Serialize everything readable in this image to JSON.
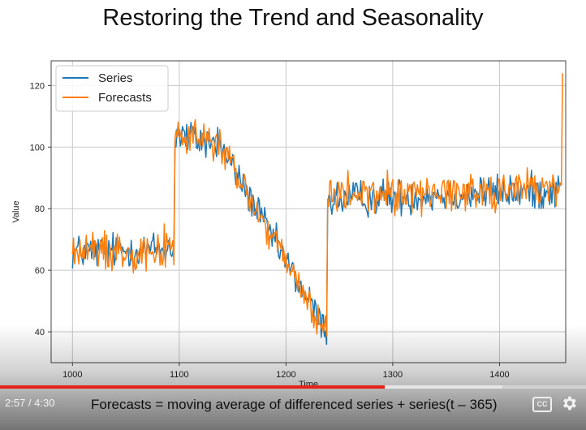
{
  "slide": {
    "title": "Restoring the Trend and Seasonality"
  },
  "player": {
    "time_display": "2:57 / 4:30",
    "caption": "Forecasts = moving average of differenced series + series(t – 365)",
    "progress_played": 0.656,
    "progress_buffered": 0.858,
    "cc_label": "CC",
    "settings_icon": "gear-icon",
    "accent_color": "#e62117"
  },
  "chart_data": {
    "type": "line",
    "xlabel": "Time",
    "ylabel": "Value",
    "xlim": [
      980,
      1462
    ],
    "ylim": [
      30,
      128
    ],
    "xticks": [
      1000,
      1100,
      1200,
      1300,
      1400
    ],
    "yticks": [
      40,
      60,
      80,
      100,
      120
    ],
    "grid": true,
    "legend_position": "upper-left",
    "series": [
      {
        "name": "Series",
        "color": "#1f77b4",
        "segments": [
          {
            "x_start": 1000,
            "x_end": 1095,
            "level_start": 66,
            "level_end": 67,
            "noise": 5.5
          },
          {
            "x_start": 1096,
            "x_end": 1138,
            "level_start": 104,
            "level_end": 101,
            "noise": 6
          },
          {
            "x_start": 1139,
            "x_end": 1238,
            "level_start": 100,
            "level_end": 40,
            "noise": 5
          },
          {
            "x_start": 1239,
            "x_end": 1457,
            "level_start": 83,
            "level_end": 86,
            "noise": 5.5
          }
        ]
      },
      {
        "name": "Forecasts",
        "color": "#ff7f0e",
        "segments": [
          {
            "x_start": 1000,
            "x_end": 1095,
            "level_start": 66,
            "level_end": 67,
            "noise": 6
          },
          {
            "x_start": 1096,
            "x_end": 1138,
            "level_start": 104,
            "level_end": 101,
            "noise": 6.5
          },
          {
            "x_start": 1139,
            "x_end": 1238,
            "level_start": 100,
            "level_end": 39,
            "noise": 5.5
          },
          {
            "x_start": 1239,
            "x_end": 1458,
            "level_start": 84,
            "level_end": 87,
            "noise": 6
          }
        ],
        "final_spike": {
          "x": 1459,
          "y": 124
        }
      }
    ]
  }
}
